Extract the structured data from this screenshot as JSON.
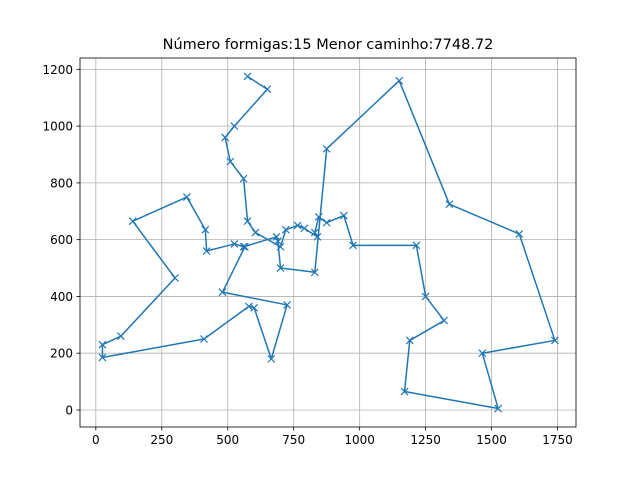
{
  "chart_data": {
    "type": "line",
    "title": "Número formigas:15  Menor caminho:7748.72",
    "xlabel": "",
    "ylabel": "",
    "xlim": [
      -60,
      1820
    ],
    "ylim": [
      -60,
      1240
    ],
    "xticks": [
      0,
      250,
      500,
      750,
      1000,
      1250,
      1500,
      1750
    ],
    "yticks": [
      0,
      200,
      400,
      600,
      800,
      1000,
      1200
    ],
    "xtick_labels": [
      "0",
      "250",
      "500",
      "750",
      "1000",
      "1250",
      "1500",
      "1750"
    ],
    "ytick_labels": [
      "0",
      "200",
      "400",
      "600",
      "800",
      "1000",
      "1200"
    ],
    "grid": true,
    "marker": "x",
    "series": [
      {
        "color": "#1f77b4",
        "x": [
          575,
          650,
          525,
          490,
          510,
          560,
          575,
          605,
          700,
          720,
          765,
          790,
          840,
          830,
          845,
          875,
          940,
          975,
          1215,
          1250,
          1320,
          1190,
          1170,
          1525,
          1465,
          1740,
          1605,
          1340,
          1150,
          875,
          830,
          700,
          690,
          685,
          560,
          525,
          420,
          415,
          345,
          140,
          300,
          95,
          25,
          25,
          410,
          580,
          600,
          665,
          725,
          480,
          565
        ],
        "y": [
          1175,
          1130,
          1000,
          960,
          875,
          815,
          665,
          625,
          575,
          635,
          650,
          640,
          610,
          625,
          680,
          660,
          685,
          580,
          580,
          400,
          315,
          245,
          65,
          5,
          200,
          245,
          620,
          725,
          1160,
          920,
          485,
          500,
          595,
          610,
          575,
          585,
          560,
          635,
          750,
          665,
          465,
          260,
          230,
          185,
          250,
          365,
          360,
          180,
          370,
          415,
          575
        ]
      }
    ]
  }
}
